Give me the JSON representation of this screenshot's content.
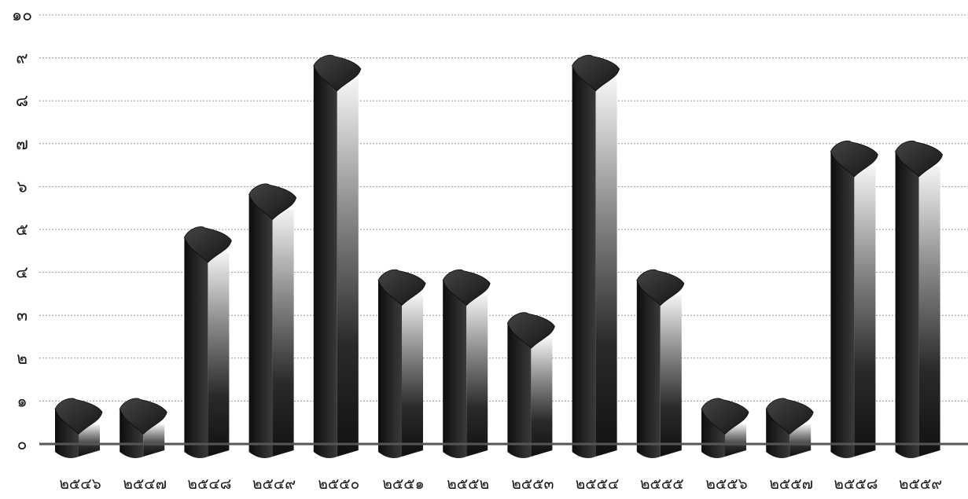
{
  "chart_data": {
    "type": "bar",
    "title": "",
    "xlabel": "",
    "ylabel": "",
    "ylim": [
      0,
      10
    ],
    "yticks": [
      "๐",
      "๑",
      "๒",
      "๓",
      "๔",
      "๕",
      "๖",
      "๗",
      "๘",
      "๙",
      "๑๐"
    ],
    "grid": true,
    "categories": [
      "๒๕๔๖",
      "๒๕๔๗",
      "๒๕๔๘",
      "๒๕๔๙",
      "๒๕๕๐",
      "๒๕๕๑",
      "๒๕๕๒",
      "๒๕๕๓",
      "๒๕๕๔",
      "๒๕๕๕",
      "๒๕๕๖",
      "๒๕๕๗",
      "๒๕๕๘",
      "๒๕๕๙"
    ],
    "values": [
      1,
      1,
      5,
      6,
      9,
      4,
      4,
      3,
      9,
      4,
      1,
      1,
      7,
      7
    ],
    "colors": {
      "bar_dark": "#1b1b1b",
      "bar_light": "#e8e8e8",
      "baseline": "#555555",
      "grid": "#9a9a9a"
    }
  }
}
